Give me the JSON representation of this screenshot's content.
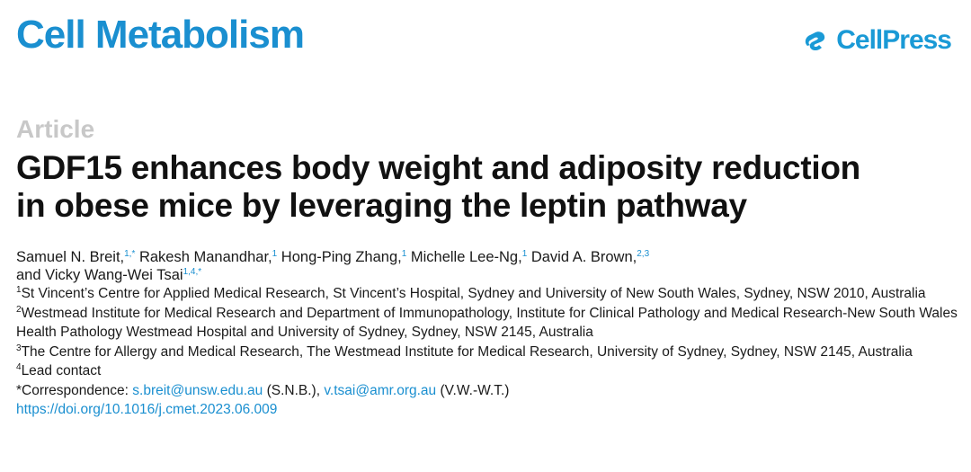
{
  "header": {
    "journal": "Cell Metabolism",
    "publisher": "CellPress",
    "brand_color": "#1a8fd0"
  },
  "article": {
    "type": "Article",
    "title_line1": "GDF15 enhances body weight and adiposity reduction",
    "title_line2": "in obese mice by leveraging the leptin pathway",
    "authors": [
      {
        "name": "Samuel N. Breit,",
        "sup": "1,*"
      },
      {
        "name": "Rakesh Manandhar,",
        "sup": "1"
      },
      {
        "name": "Hong-Ping Zhang,",
        "sup": "1"
      },
      {
        "name": "Michelle Lee-Ng,",
        "sup": "1"
      },
      {
        "name": "David A. Brown,",
        "sup": "2,3"
      },
      {
        "name": "and Vicky Wang-Wei Tsai",
        "sup": "1,4,*"
      }
    ],
    "affiliations": [
      {
        "num": "1",
        "text": "St Vincent’s Centre for Applied Medical Research, St Vincent’s Hospital, Sydney and University of New South Wales, Sydney, NSW 2010, Australia"
      },
      {
        "num": "2",
        "text": "Westmead Institute for Medical Research and Department of Immunopathology, Institute for Clinical Pathology and Medical Research-New South Wales Health Pathology Westmead Hospital and University of Sydney, Sydney, NSW 2145, Australia"
      },
      {
        "num": "3",
        "text": "The Centre for Allergy and Medical Research, The Westmead Institute for Medical Research, University of Sydney, Sydney, NSW 2145, Australia"
      },
      {
        "num": "4",
        "text": "Lead contact"
      }
    ],
    "correspondence": {
      "label": "*Correspondence:",
      "email1": "s.breit@unsw.edu.au",
      "initials1": "(S.N.B.),",
      "email2": "v.tsai@amr.org.au",
      "initials2": "(V.W.-W.T.)"
    },
    "doi": "https://doi.org/10.1016/j.cmet.2023.06.009"
  }
}
